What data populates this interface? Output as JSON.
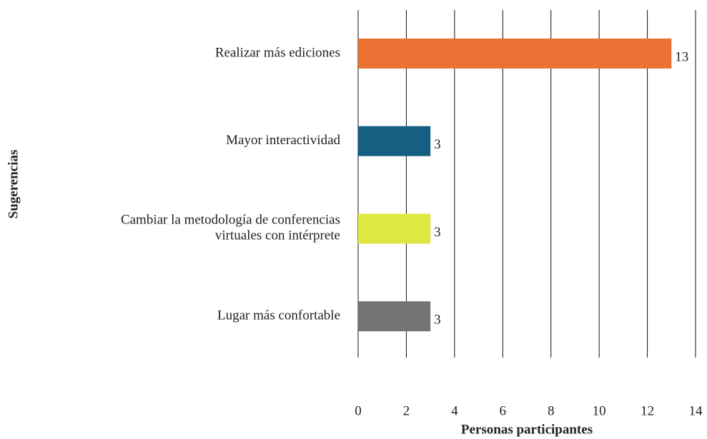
{
  "chart_data": {
    "type": "bar",
    "orientation": "horizontal",
    "categories": [
      "Realizar más ediciones",
      "Mayor interactividad",
      "Cambiar la metodología de conferencias\nvirtuales con intérprete",
      "Lugar más confortable"
    ],
    "values": [
      13,
      3,
      3,
      3
    ],
    "colors": [
      "#e87133",
      "#156082",
      "#dfe843",
      "#737373"
    ],
    "xlabel": "Personas participantes",
    "ylabel": "Sugerencias",
    "xlim": [
      0,
      14
    ],
    "xticks": [
      0,
      2,
      4,
      6,
      8,
      10,
      12,
      14
    ],
    "grid": true
  }
}
